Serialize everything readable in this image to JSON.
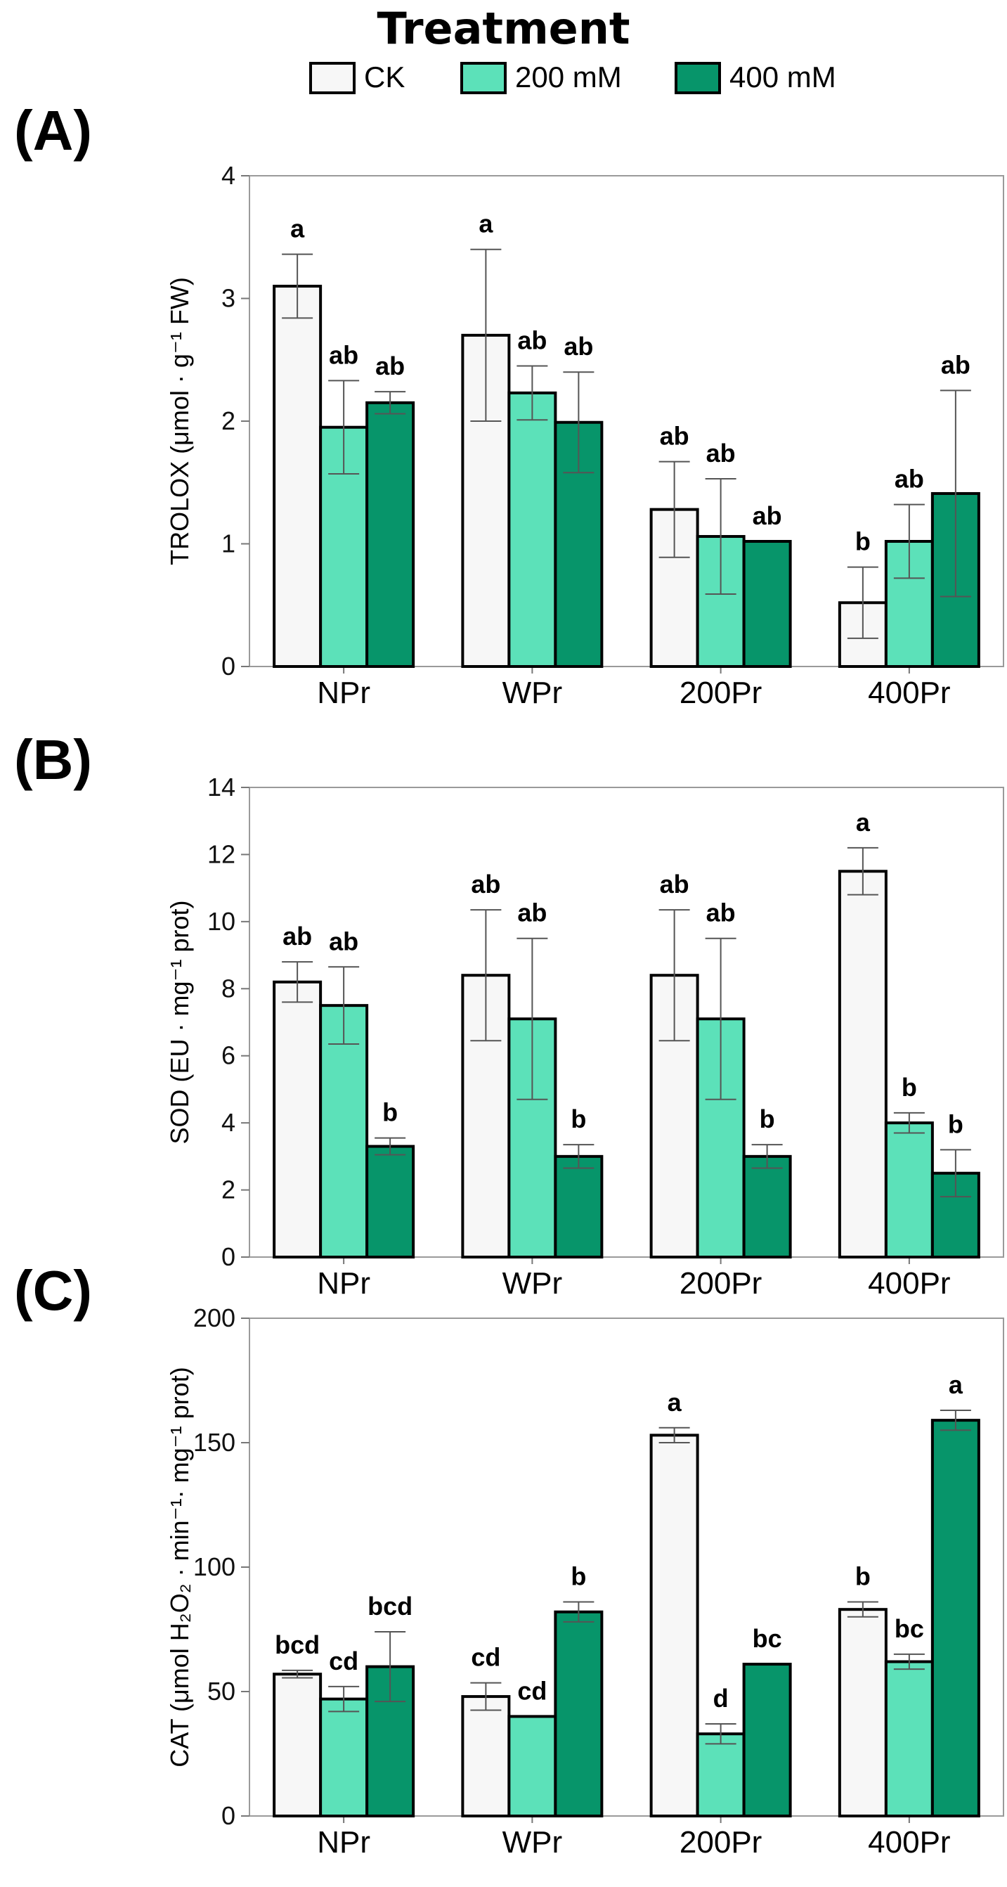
{
  "legend": {
    "title": "Treatment",
    "entries": [
      {
        "label": "CK",
        "color": "#f7f7f7"
      },
      {
        "label": "200 mM",
        "color": "#5ce1b9"
      },
      {
        "label": "400 mM",
        "color": "#07956a"
      }
    ]
  },
  "panels": [
    {
      "label": "(A)"
    },
    {
      "label": "(B)"
    },
    {
      "label": "(C)"
    }
  ],
  "chart_data": [
    {
      "type": "bar",
      "panel": "(A)",
      "ylabel": "TROLOX (μmol · g⁻¹ FW)",
      "ylim": [
        0,
        4
      ],
      "yticks": [
        0,
        1,
        2,
        3,
        4
      ],
      "categories": [
        "NPr",
        "WPr",
        "200Pr",
        "400Pr"
      ],
      "series": [
        {
          "name": "CK",
          "values": [
            3.1,
            2.7,
            1.28,
            0.52
          ],
          "errors": [
            0.26,
            0.7,
            0.39,
            0.29
          ],
          "letters": [
            "a",
            "a",
            "ab",
            "b"
          ]
        },
        {
          "name": "200 mM",
          "values": [
            1.95,
            2.23,
            1.06,
            1.02
          ],
          "errors": [
            0.38,
            0.22,
            0.47,
            0.3
          ],
          "letters": [
            "ab",
            "ab",
            "ab",
            "ab"
          ]
        },
        {
          "name": "400 mM",
          "values": [
            2.15,
            1.99,
            1.02,
            1.41
          ],
          "errors": [
            0.09,
            0.41,
            0.0,
            0.84
          ],
          "letters": [
            "ab",
            "ab",
            "ab",
            "ab"
          ]
        }
      ],
      "grid": false,
      "legend_position": "top-center"
    },
    {
      "type": "bar",
      "panel": "(B)",
      "ylabel": "SOD (EU · mg⁻¹ prot)",
      "ylim": [
        0,
        14
      ],
      "yticks": [
        0,
        2,
        4,
        6,
        8,
        10,
        12,
        14
      ],
      "categories": [
        "NPr",
        "WPr",
        "200Pr",
        "400Pr"
      ],
      "series": [
        {
          "name": "CK",
          "values": [
            8.2,
            8.4,
            8.4,
            11.5
          ],
          "errors": [
            0.6,
            1.95,
            1.95,
            0.7
          ],
          "letters": [
            "ab",
            "ab",
            "ab",
            "a"
          ]
        },
        {
          "name": "200 mM",
          "values": [
            7.5,
            7.1,
            7.1,
            4.0
          ],
          "errors": [
            1.15,
            2.4,
            2.4,
            0.3
          ],
          "letters": [
            "ab",
            "ab",
            "ab",
            "b"
          ]
        },
        {
          "name": "400 mM",
          "values": [
            3.3,
            3.0,
            3.0,
            2.5
          ],
          "errors": [
            0.25,
            0.35,
            0.35,
            0.7
          ],
          "letters": [
            "b",
            "b",
            "b",
            "b"
          ]
        }
      ],
      "grid": false
    },
    {
      "type": "bar",
      "panel": "(C)",
      "ylabel": "CAT (μmol H₂O₂ · min⁻¹· mg⁻¹ prot)",
      "ylim": [
        0,
        200
      ],
      "yticks": [
        0,
        50,
        100,
        150,
        200
      ],
      "categories": [
        "NPr",
        "WPr",
        "200Pr",
        "400Pr"
      ],
      "series": [
        {
          "name": "CK",
          "values": [
            57,
            48,
            153,
            83
          ],
          "errors": [
            1.5,
            5.5,
            3.0,
            3.0
          ],
          "letters": [
            "bcd",
            "cd",
            "a",
            "b"
          ]
        },
        {
          "name": "200 mM",
          "values": [
            47,
            40,
            33,
            62
          ],
          "errors": [
            5.0,
            0.0,
            4.0,
            3.0
          ],
          "letters": [
            "cd",
            "cd",
            "d",
            "bc"
          ]
        },
        {
          "name": "400 mM",
          "values": [
            60,
            82,
            61,
            159
          ],
          "errors": [
            14,
            4.0,
            0.0,
            4.0
          ],
          "letters": [
            "bcd",
            "b",
            "bc",
            "a"
          ]
        }
      ],
      "grid": false
    }
  ]
}
